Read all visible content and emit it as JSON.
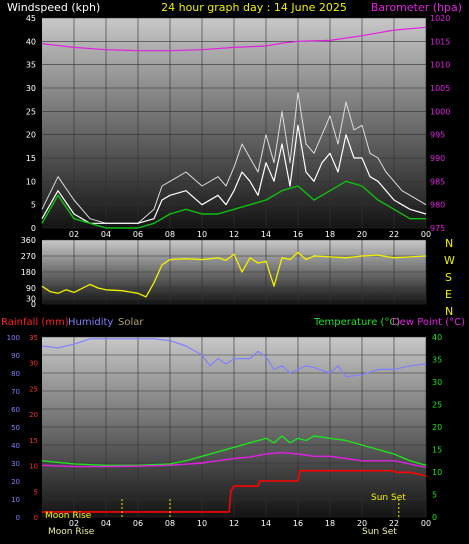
{
  "colors": {
    "windspeed": "#ffffff",
    "gust": "#dcdcdc",
    "avg_wind": "#10c010",
    "barometer": "#e020e0",
    "direction": "#f0f000",
    "rainfall": "#ff0000",
    "humidity": "#8080ff",
    "solar": "#b0a070",
    "temperature": "#20e020",
    "dewpoint": "#e020e0",
    "compass": "#f0f000"
  },
  "header": {
    "windspeed_label": "Windspeed (kph)",
    "title": "24 hour graph day : 14 June 2025",
    "barometer_label": "Barometer (hpa)"
  },
  "mid_header": {
    "rainfall_label": "Rainfall (mm)",
    "humidity_label": "Humidity",
    "solar_label": "Solar",
    "temperature_label": "Temperature (°C)",
    "dewpoint_label": "Dew Point (°C)"
  },
  "compass": [
    "N",
    "W",
    "S",
    "E",
    "N"
  ],
  "annotations": {
    "moon_rise_top": "Moon Rise",
    "moon_rise_bottom": "Moon Rise",
    "sun_set": "Sun Set",
    "sun_set_bottom": "Sun Set"
  },
  "chart_data": [
    {
      "type": "line",
      "name": "wind-barometer",
      "x_ticks": [
        "02",
        "04",
        "06",
        "08",
        "10",
        "12",
        "14",
        "16",
        "18",
        "20",
        "22",
        "00"
      ],
      "y_left": {
        "label": "Windspeed (kph)",
        "range": [
          0,
          45
        ],
        "ticks": [
          0,
          5,
          10,
          15,
          20,
          25,
          30,
          35,
          40,
          45
        ]
      },
      "y_right": {
        "label": "Barometer (hpa)",
        "range": [
          975,
          1020
        ],
        "ticks": [
          975,
          980,
          985,
          990,
          995,
          1000,
          1005,
          1010,
          1015,
          1020
        ]
      },
      "series": [
        {
          "name": "Windspeed",
          "axis": "left",
          "x": [
            0,
            1,
            2,
            3,
            4,
            5,
            6,
            7,
            7.5,
            8,
            9,
            10,
            11,
            11.5,
            12,
            12.5,
            13,
            13.5,
            14,
            14.5,
            15,
            15.5,
            16,
            16.5,
            17,
            17.5,
            18,
            18.5,
            19,
            19.5,
            20,
            20.5,
            21,
            21.5,
            22,
            22.5,
            23,
            24
          ],
          "y": [
            2,
            8,
            3,
            1,
            1,
            1,
            1,
            2,
            6,
            7,
            8,
            5,
            7,
            5,
            8,
            12,
            10,
            7,
            14,
            10,
            18,
            9,
            22,
            12,
            10,
            14,
            16,
            12,
            20,
            15,
            15,
            11,
            10,
            8,
            6,
            5,
            4,
            3
          ]
        },
        {
          "name": "Gust",
          "axis": "left",
          "x": [
            0,
            1,
            2,
            3,
            4,
            5,
            6,
            7,
            7.5,
            8,
            9,
            10,
            11,
            11.5,
            12,
            12.5,
            13,
            13.5,
            14,
            14.5,
            15,
            15.5,
            16,
            16.5,
            17,
            17.5,
            18,
            18.5,
            19,
            19.5,
            20,
            20.5,
            21,
            21.5,
            22,
            22.5,
            23,
            24
          ],
          "y": [
            4,
            11,
            6,
            2,
            1,
            1,
            1,
            4,
            9,
            10,
            12,
            9,
            11,
            9,
            13,
            18,
            15,
            12,
            20,
            14,
            25,
            14,
            29,
            18,
            16,
            20,
            24,
            18,
            27,
            21,
            22,
            16,
            15,
            12,
            10,
            8,
            7,
            5
          ]
        },
        {
          "name": "Average wind",
          "axis": "left",
          "x": [
            0,
            1,
            2,
            3,
            4,
            5,
            6,
            7,
            8,
            9,
            10,
            11,
            12,
            13,
            14,
            15,
            16,
            17,
            18,
            19,
            20,
            21,
            22,
            23,
            24
          ],
          "y": [
            1,
            7,
            2,
            1,
            0,
            0,
            0,
            1,
            3,
            4,
            3,
            3,
            4,
            5,
            6,
            8,
            9,
            6,
            8,
            10,
            9,
            6,
            4,
            2,
            2
          ]
        },
        {
          "name": "Barometer",
          "axis": "right",
          "x": [
            0,
            2,
            4,
            6,
            8,
            10,
            12,
            14,
            15,
            16,
            18,
            20,
            22,
            24
          ],
          "y": [
            1014.5,
            1013.7,
            1013.2,
            1013.0,
            1013.0,
            1013.2,
            1013.7,
            1014.0,
            1014.6,
            1015.0,
            1015.2,
            1016.2,
            1017.4,
            1018.0
          ]
        }
      ]
    },
    {
      "type": "line",
      "name": "wind-direction",
      "x_ticks": [
        "02",
        "04",
        "06",
        "08",
        "10",
        "12",
        "14",
        "16",
        "18",
        "20",
        "22",
        "00"
      ],
      "y_left": {
        "label": "",
        "range": [
          0,
          360
        ],
        "ticks": [
          0,
          30,
          90,
          180,
          270,
          360
        ]
      },
      "series": [
        {
          "name": "Direction",
          "x": [
            0,
            0.5,
            1,
            1.5,
            2,
            3,
            3.5,
            4,
            5,
            6,
            6.5,
            7,
            7.5,
            8,
            9,
            10,
            11,
            11.5,
            12,
            12.5,
            13,
            13.5,
            14,
            14.5,
            15,
            15.5,
            16,
            16.5,
            17,
            18,
            19,
            20,
            21,
            22,
            23,
            24
          ],
          "y": [
            100,
            70,
            60,
            80,
            65,
            110,
            90,
            80,
            75,
            60,
            40,
            120,
            220,
            250,
            255,
            250,
            260,
            245,
            280,
            180,
            260,
            230,
            240,
            100,
            260,
            250,
            290,
            250,
            270,
            265,
            260,
            270,
            275,
            260,
            265,
            270
          ]
        }
      ]
    },
    {
      "type": "line",
      "name": "rain-humidity-temperature",
      "x_ticks": [
        "02",
        "04",
        "06",
        "08",
        "10",
        "12",
        "14",
        "16",
        "18",
        "20",
        "22",
        "00"
      ],
      "y_left_outer": {
        "label": "Rainfall (mm)",
        "range": [
          0,
          35
        ],
        "ticks": [
          0,
          5,
          10,
          15,
          20,
          25,
          30,
          35
        ]
      },
      "y_left_inner": {
        "label": "Humidity",
        "range": [
          0,
          100
        ],
        "ticks": [
          0,
          10,
          20,
          30,
          40,
          50,
          60,
          70,
          80,
          90,
          100
        ]
      },
      "y_right": {
        "label": "Temperature (°C)",
        "range": [
          0,
          40
        ],
        "ticks": [
          0,
          5,
          10,
          15,
          20,
          25,
          30,
          35,
          40
        ]
      },
      "series": [
        {
          "name": "Humidity",
          "axis": "left_inner",
          "x": [
            0,
            1,
            2,
            3,
            4,
            5,
            6,
            7,
            8,
            9,
            10,
            10.5,
            11,
            11.5,
            12,
            13,
            13.5,
            14,
            14.5,
            15,
            15.5,
            16,
            16.5,
            17,
            18,
            18.5,
            19,
            20,
            21,
            22,
            23,
            24
          ],
          "y": [
            95,
            94,
            96,
            99,
            99,
            99,
            99,
            99,
            98,
            95,
            90,
            84,
            88,
            85,
            88,
            88,
            92,
            89,
            82,
            84,
            80,
            82,
            84,
            83,
            80,
            84,
            78,
            79,
            82,
            82,
            84,
            85
          ]
        },
        {
          "name": "Rainfall",
          "axis": "left_outer",
          "x": [
            0,
            11.7,
            11.8,
            12,
            13.5,
            13.6,
            15,
            16,
            16.1,
            17,
            20,
            22,
            22.1,
            23,
            24
          ],
          "y": [
            1,
            1,
            5,
            6,
            6,
            7,
            7,
            7,
            9,
            9,
            9,
            9,
            8.7,
            8.7,
            8
          ]
        },
        {
          "name": "Temperature",
          "axis": "right",
          "x": [
            0,
            2,
            4,
            6,
            8,
            9,
            10,
            11,
            12,
            13,
            14,
            14.5,
            15,
            15.5,
            16,
            16.5,
            17,
            18,
            19,
            20,
            21,
            22,
            23,
            24
          ],
          "y": [
            12.5,
            11.8,
            11.5,
            11.5,
            11.8,
            12.5,
            13.5,
            14.5,
            15.5,
            16.5,
            17.5,
            16.5,
            18,
            16.5,
            17.5,
            17,
            18,
            17.5,
            17,
            16,
            15,
            14,
            12.5,
            11.5
          ]
        },
        {
          "name": "Dew Point",
          "axis": "right",
          "x": [
            0,
            2,
            4,
            6,
            8,
            10,
            11,
            12,
            13,
            14,
            15,
            16,
            17,
            18,
            19,
            20,
            21,
            22,
            23,
            24
          ],
          "y": [
            11.5,
            11.2,
            11.2,
            11.3,
            11.5,
            12,
            12.5,
            13,
            13.3,
            14,
            14.3,
            14,
            13.5,
            13.5,
            13,
            12.5,
            12.5,
            12.5,
            11.8,
            11
          ]
        },
        {
          "name": "Solar",
          "axis": "left_inner",
          "x": [
            0,
            24
          ],
          "y": [
            0,
            0
          ]
        }
      ],
      "markers": [
        {
          "label": "Moon Rise",
          "x": 0
        },
        {
          "label": "Sun Set",
          "x": 22.3
        }
      ]
    }
  ]
}
